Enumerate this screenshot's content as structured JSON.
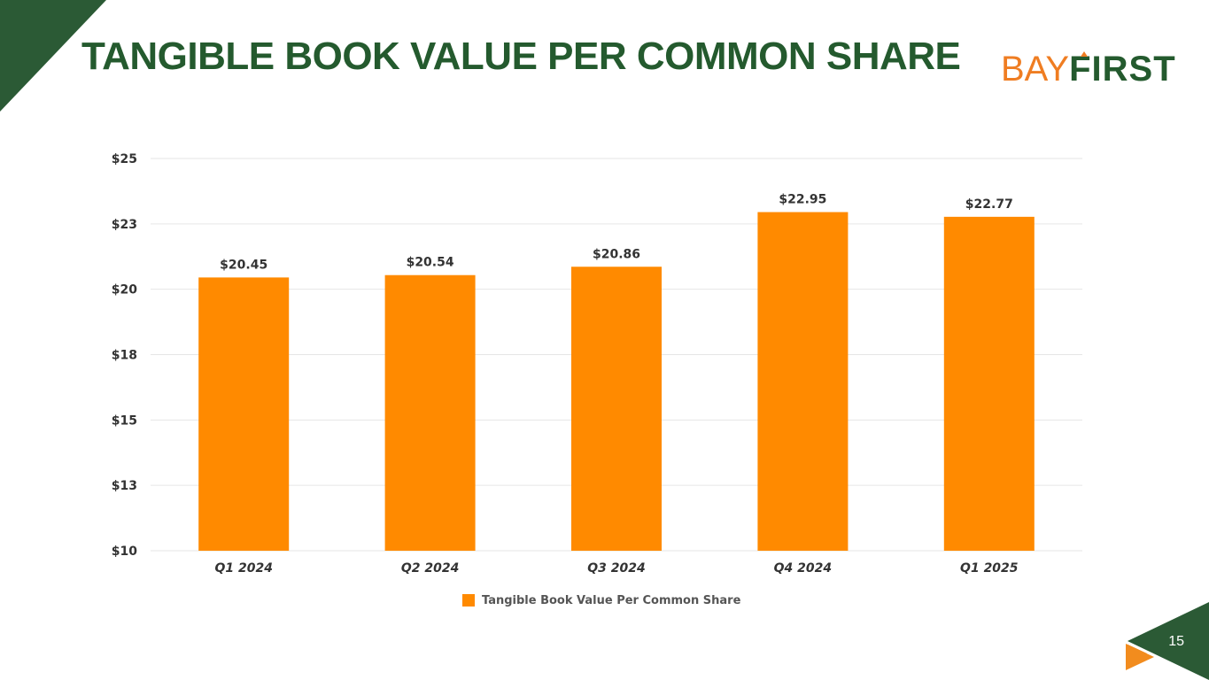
{
  "slide": {
    "title": "TANGIBLE BOOK VALUE PER COMMON SHARE",
    "page_number": "15"
  },
  "logo": {
    "part1": "BAY",
    "part2": "FIRST"
  },
  "colors": {
    "brand_green": "#245a2e",
    "bar": "#ff8a00",
    "accent_orange": "#ef7d22",
    "grid": "#e6e6e6"
  },
  "chart_data": {
    "type": "bar",
    "categories": [
      "Q1 2024",
      "Q2 2024",
      "Q3 2024",
      "Q4 2024",
      "Q1 2025"
    ],
    "series": [
      {
        "name": "Tangible Book Value Per Common Share",
        "values": [
          20.45,
          20.54,
          20.86,
          22.95,
          22.77
        ]
      }
    ],
    "data_labels": [
      "$20.45",
      "$20.54",
      "$20.86",
      "$22.95",
      "$22.77"
    ],
    "ylim": [
      10,
      25
    ],
    "yticks": [
      10,
      12.5,
      15,
      17.5,
      20,
      22.5,
      25
    ],
    "ytick_labels": [
      "$10",
      "$13",
      "$15",
      "$18",
      "$20",
      "$23",
      "$25"
    ],
    "grid": true,
    "legend_position": "bottom"
  }
}
